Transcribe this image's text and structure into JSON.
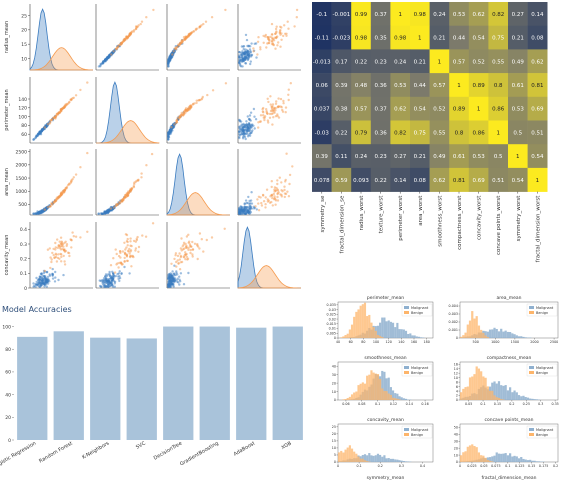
{
  "chart_data": [
    {
      "type": "scatter",
      "variables": [
        "radius_mean",
        "perimeter_mean",
        "area_mean",
        "concavity_mean"
      ],
      "variable_ticks": [
        [
          10,
          15,
          20,
          25
        ],
        [
          60,
          80,
          100,
          120,
          140
        ],
        [
          500,
          1000,
          1500,
          2000,
          2500
        ],
        [
          0.0,
          0.1,
          0.2,
          0.3,
          0.4
        ]
      ],
      "variable_ranges": [
        [
          6,
          29
        ],
        [
          40,
          190
        ],
        [
          100,
          2600
        ],
        [
          0,
          0.45
        ]
      ],
      "hue_colors": {
        "Malignant": "#f59a4e",
        "Benign": "#3a7bbf"
      },
      "diagonal": "kde",
      "title": "",
      "xlabel": "",
      "ylabel": ""
    },
    {
      "type": "heatmap",
      "columns": [
        "symmetry_se",
        "fractal_dimension_se",
        "radius_worst",
        "texture_worst",
        "perimeter_worst",
        "area_worst",
        "smoothness_worst",
        "compactness_worst",
        "concavity_worst",
        "concave points_worst",
        "symmetry_worst",
        "fractal_dimension_worst"
      ],
      "values": [
        [
          -0.1,
          -0.001,
          0.99,
          0.37,
          1,
          0.98,
          0.24,
          0.53,
          0.62,
          0.82,
          0.27,
          0.14
        ],
        [
          -0.11,
          -0.023,
          0.98,
          0.35,
          0.98,
          1,
          0.21,
          0.44,
          0.54,
          0.75,
          0.21,
          0.08
        ],
        [
          -0.013,
          0.17,
          0.22,
          0.23,
          0.24,
          0.21,
          1,
          0.57,
          0.52,
          0.55,
          0.49,
          0.62
        ],
        [
          0.06,
          0.39,
          0.48,
          0.36,
          0.53,
          0.44,
          0.57,
          1,
          0.89,
          0.8,
          0.61,
          0.81
        ],
        [
          0.037,
          0.38,
          0.57,
          0.37,
          0.62,
          0.54,
          0.52,
          0.89,
          1,
          0.86,
          0.53,
          0.69
        ],
        [
          -0.03,
          0.22,
          0.79,
          0.36,
          0.82,
          0.75,
          0.55,
          0.8,
          0.86,
          1,
          0.5,
          0.51
        ],
        [
          0.39,
          0.11,
          0.24,
          0.23,
          0.27,
          0.21,
          0.49,
          0.61,
          0.53,
          0.5,
          1,
          0.54
        ],
        [
          0.078,
          0.59,
          0.093,
          0.22,
          0.14,
          0.08,
          0.62,
          0.81,
          0.69,
          0.51,
          0.54,
          1
        ]
      ],
      "colormap": [
        "#1f3363",
        "#7d7b6b",
        "#fcea1f"
      ],
      "title": "",
      "xlabel": "",
      "ylabel": ""
    },
    {
      "type": "bar",
      "title": "Model Accuracies",
      "categories": [
        "Logistic Regression",
        "Random Forest",
        "K-Neighbors",
        "SVC",
        "DecisionTree",
        "GradientBoosting",
        "AdaBoost",
        "XGB"
      ],
      "values": [
        90.9,
        95.8,
        90.2,
        89.5,
        100,
        100,
        99,
        100
      ],
      "yticks": [
        0,
        20,
        40,
        60,
        80,
        100
      ],
      "ylim": [
        0,
        104
      ],
      "bar_color": "#a9c3da",
      "xlabel": "",
      "ylabel": ""
    },
    {
      "type": "histogram",
      "legend": [
        "Malignant",
        "Benign"
      ],
      "series_colors": {
        "Malignant": "#8fb0cf",
        "Benign": "#fdb56b"
      },
      "subplots": [
        {
          "title": "perimeter_mean",
          "xticks": [
            40,
            60,
            80,
            100,
            120,
            140,
            160,
            180
          ],
          "xlim": [
            40,
            190
          ],
          "yticks": [
            0,
            0.005,
            0.01,
            0.015,
            0.02,
            0.025,
            0.03,
            0.035
          ],
          "ylim": [
            0,
            0.038
          ],
          "benign_mean": 78,
          "benign_sd": 12,
          "malignant_mean": 116,
          "malignant_sd": 22
        },
        {
          "title": "area_mean",
          "xticks": [
            500,
            1000,
            1500,
            2000,
            2500
          ],
          "xlim": [
            100,
            2600
          ],
          "yticks": [
            0,
            0.001,
            0.002,
            0.003,
            0.004
          ],
          "ylim": [
            0,
            0.0045
          ],
          "benign_mean": 460,
          "benign_sd": 135,
          "malignant_mean": 980,
          "malignant_sd": 360
        },
        {
          "title": "smoothness_mean",
          "xticks": [
            0.06,
            0.08,
            0.1,
            0.12,
            0.14,
            0.16
          ],
          "xlim": [
            0.05,
            0.17
          ],
          "yticks": [
            0,
            10,
            20,
            30,
            40
          ],
          "ylim": [
            0,
            45
          ],
          "benign_mean": 0.092,
          "benign_sd": 0.013,
          "malignant_mean": 0.103,
          "malignant_sd": 0.013
        },
        {
          "title": "compactness_mean",
          "xticks": [
            0.05,
            0.1,
            0.15,
            0.2,
            0.25,
            0.3,
            0.35
          ],
          "xlim": [
            0.02,
            0.36
          ],
          "yticks": [
            0,
            2,
            4,
            6,
            8,
            10,
            12,
            14,
            16
          ],
          "ylim": [
            0,
            17
          ],
          "benign_mean": 0.08,
          "benign_sd": 0.033,
          "malignant_mean": 0.145,
          "malignant_sd": 0.055
        },
        {
          "title": "concavity_mean",
          "xticks": [
            0.0,
            0.1,
            0.2,
            0.3,
            0.4
          ],
          "xlim": [
            0,
            0.45
          ],
          "yticks": [
            0,
            5,
            10,
            15,
            20,
            25
          ],
          "ylim": [
            0,
            27
          ],
          "benign_mean": 0.045,
          "benign_sd": 0.04,
          "malignant_mean": 0.16,
          "malignant_sd": 0.075
        },
        {
          "title": "concave points_mean",
          "xticks": [
            0,
            0.025,
            0.05,
            0.075,
            0.1,
            0.125,
            0.15,
            0.175,
            0.2
          ],
          "xlim": [
            0,
            0.205
          ],
          "yticks": [
            0,
            10,
            20,
            30,
            40,
            50
          ],
          "ylim": [
            0,
            55
          ],
          "benign_mean": 0.026,
          "benign_sd": 0.016,
          "malignant_mean": 0.088,
          "malignant_sd": 0.034
        },
        {
          "title": "symmetry_mean",
          "xticks": [],
          "xlim": [
            0.1,
            0.3
          ],
          "yticks": [],
          "ylim": [
            0,
            1
          ]
        },
        {
          "title": "fractal_dimension_mean",
          "xticks": [],
          "xlim": [
            0.05,
            0.1
          ],
          "yticks": [],
          "ylim": [
            0,
            1
          ]
        }
      ]
    }
  ]
}
